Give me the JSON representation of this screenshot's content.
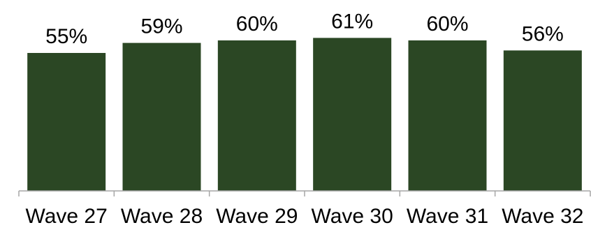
{
  "chart_data": {
    "type": "bar",
    "categories": [
      "Wave 27",
      "Wave 28",
      "Wave 29",
      "Wave 30",
      "Wave 31",
      "Wave 32"
    ],
    "values": [
      55,
      59,
      60,
      61,
      60,
      56
    ],
    "value_labels": [
      "55%",
      "59%",
      "60%",
      "61%",
      "60%",
      "56%"
    ],
    "ylim": [
      0,
      75
    ],
    "grid": false,
    "legend": "none",
    "colors": {
      "bar": "#2b4724",
      "axis": "#a6a6a6",
      "text": "#000000"
    }
  }
}
